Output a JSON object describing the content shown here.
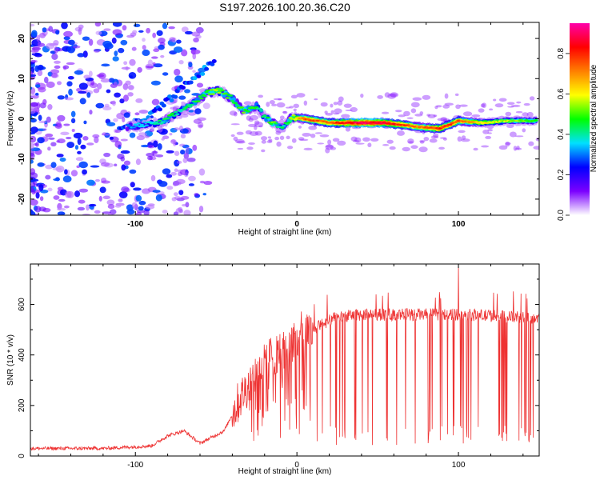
{
  "title": "S197.2026.100.20.36.C20",
  "chart_data": [
    {
      "type": "heatmap",
      "xlabel": "Height of straight line (km)",
      "ylabel": "Frequency (Hz)",
      "xlim": [
        -165,
        150
      ],
      "ylim": [
        -24,
        24
      ],
      "xticks": [
        -100,
        0,
        100
      ],
      "yticks": [
        -20,
        -10,
        0,
        10,
        20
      ],
      "colorbar": {
        "label": "Normalized spectral amplitude",
        "ticks": [
          0.0,
          0.2,
          0.4,
          0.6,
          0.8
        ],
        "range": [
          0,
          0.95
        ],
        "colors": [
          "#ffffff",
          "#7b00ff",
          "#0000ff",
          "#00e0ff",
          "#00ff00",
          "#ffff00",
          "#ff7f00",
          "#ff0000",
          "#ff00aa"
        ]
      },
      "ridge": [
        {
          "x": -105,
          "y": -2,
          "v": 0.3
        },
        {
          "x": -95,
          "y": -1.5,
          "v": 0.35
        },
        {
          "x": -85,
          "y": -1,
          "v": 0.4
        },
        {
          "x": -80,
          "y": 0,
          "v": 0.45
        },
        {
          "x": -72,
          "y": 2,
          "v": 0.4
        },
        {
          "x": -62,
          "y": 4.5,
          "v": 0.45
        },
        {
          "x": -55,
          "y": 6.5,
          "v": 0.5
        },
        {
          "x": -48,
          "y": 7,
          "v": 0.55
        },
        {
          "x": -40,
          "y": 5,
          "v": 0.45
        },
        {
          "x": -33,
          "y": 2,
          "v": 0.5
        },
        {
          "x": -25,
          "y": 3,
          "v": 0.45
        },
        {
          "x": -20,
          "y": 0.5,
          "v": 0.4
        },
        {
          "x": -15,
          "y": -1,
          "v": 0.5
        },
        {
          "x": -8,
          "y": -2,
          "v": 0.4
        },
        {
          "x": -3,
          "y": 0.5,
          "v": 0.55
        },
        {
          "x": 5,
          "y": 0,
          "v": 0.75
        },
        {
          "x": 20,
          "y": -1,
          "v": 0.75
        },
        {
          "x": 40,
          "y": -1,
          "v": 0.9
        },
        {
          "x": 55,
          "y": -1,
          "v": 0.85
        },
        {
          "x": 75,
          "y": -2,
          "v": 0.7
        },
        {
          "x": 88,
          "y": -2.5,
          "v": 0.8
        },
        {
          "x": 100,
          "y": -0.5,
          "v": 0.75
        },
        {
          "x": 115,
          "y": -1,
          "v": 0.6
        },
        {
          "x": 130,
          "y": -0.5,
          "v": 0.55
        },
        {
          "x": 148,
          "y": -0.5,
          "v": 0.5
        }
      ],
      "branch": [
        {
          "x": -110,
          "y": -3
        },
        {
          "x": -90,
          "y": 1
        },
        {
          "x": -70,
          "y": 8
        },
        {
          "x": -55,
          "y": 13
        },
        {
          "x": -50,
          "y": 15
        }
      ]
    },
    {
      "type": "line",
      "color": "#ee3333",
      "xlabel": "Height of straight line (km)",
      "ylabel": "SNR (10 * v/v)",
      "xlim": [
        -165,
        150
      ],
      "ylim": [
        0,
        760
      ],
      "xticks": [
        -100,
        0,
        100
      ],
      "yticks": [
        0,
        200,
        400,
        600
      ],
      "envelope": [
        {
          "x": -165,
          "y": 30
        },
        {
          "x": -120,
          "y": 30
        },
        {
          "x": -90,
          "y": 40
        },
        {
          "x": -80,
          "y": 80
        },
        {
          "x": -70,
          "y": 100
        },
        {
          "x": -60,
          "y": 50
        },
        {
          "x": -45,
          "y": 100
        },
        {
          "x": -35,
          "y": 230
        },
        {
          "x": -25,
          "y": 330
        },
        {
          "x": -15,
          "y": 400
        },
        {
          "x": -5,
          "y": 430
        },
        {
          "x": 5,
          "y": 480
        },
        {
          "x": 15,
          "y": 520
        },
        {
          "x": 25,
          "y": 550
        },
        {
          "x": 40,
          "y": 560
        },
        {
          "x": 60,
          "y": 560
        },
        {
          "x": 80,
          "y": 560
        },
        {
          "x": 100,
          "y": 560
        },
        {
          "x": 120,
          "y": 555
        },
        {
          "x": 150,
          "y": 545
        }
      ],
      "peak": {
        "x": 100,
        "y": 755
      }
    }
  ]
}
